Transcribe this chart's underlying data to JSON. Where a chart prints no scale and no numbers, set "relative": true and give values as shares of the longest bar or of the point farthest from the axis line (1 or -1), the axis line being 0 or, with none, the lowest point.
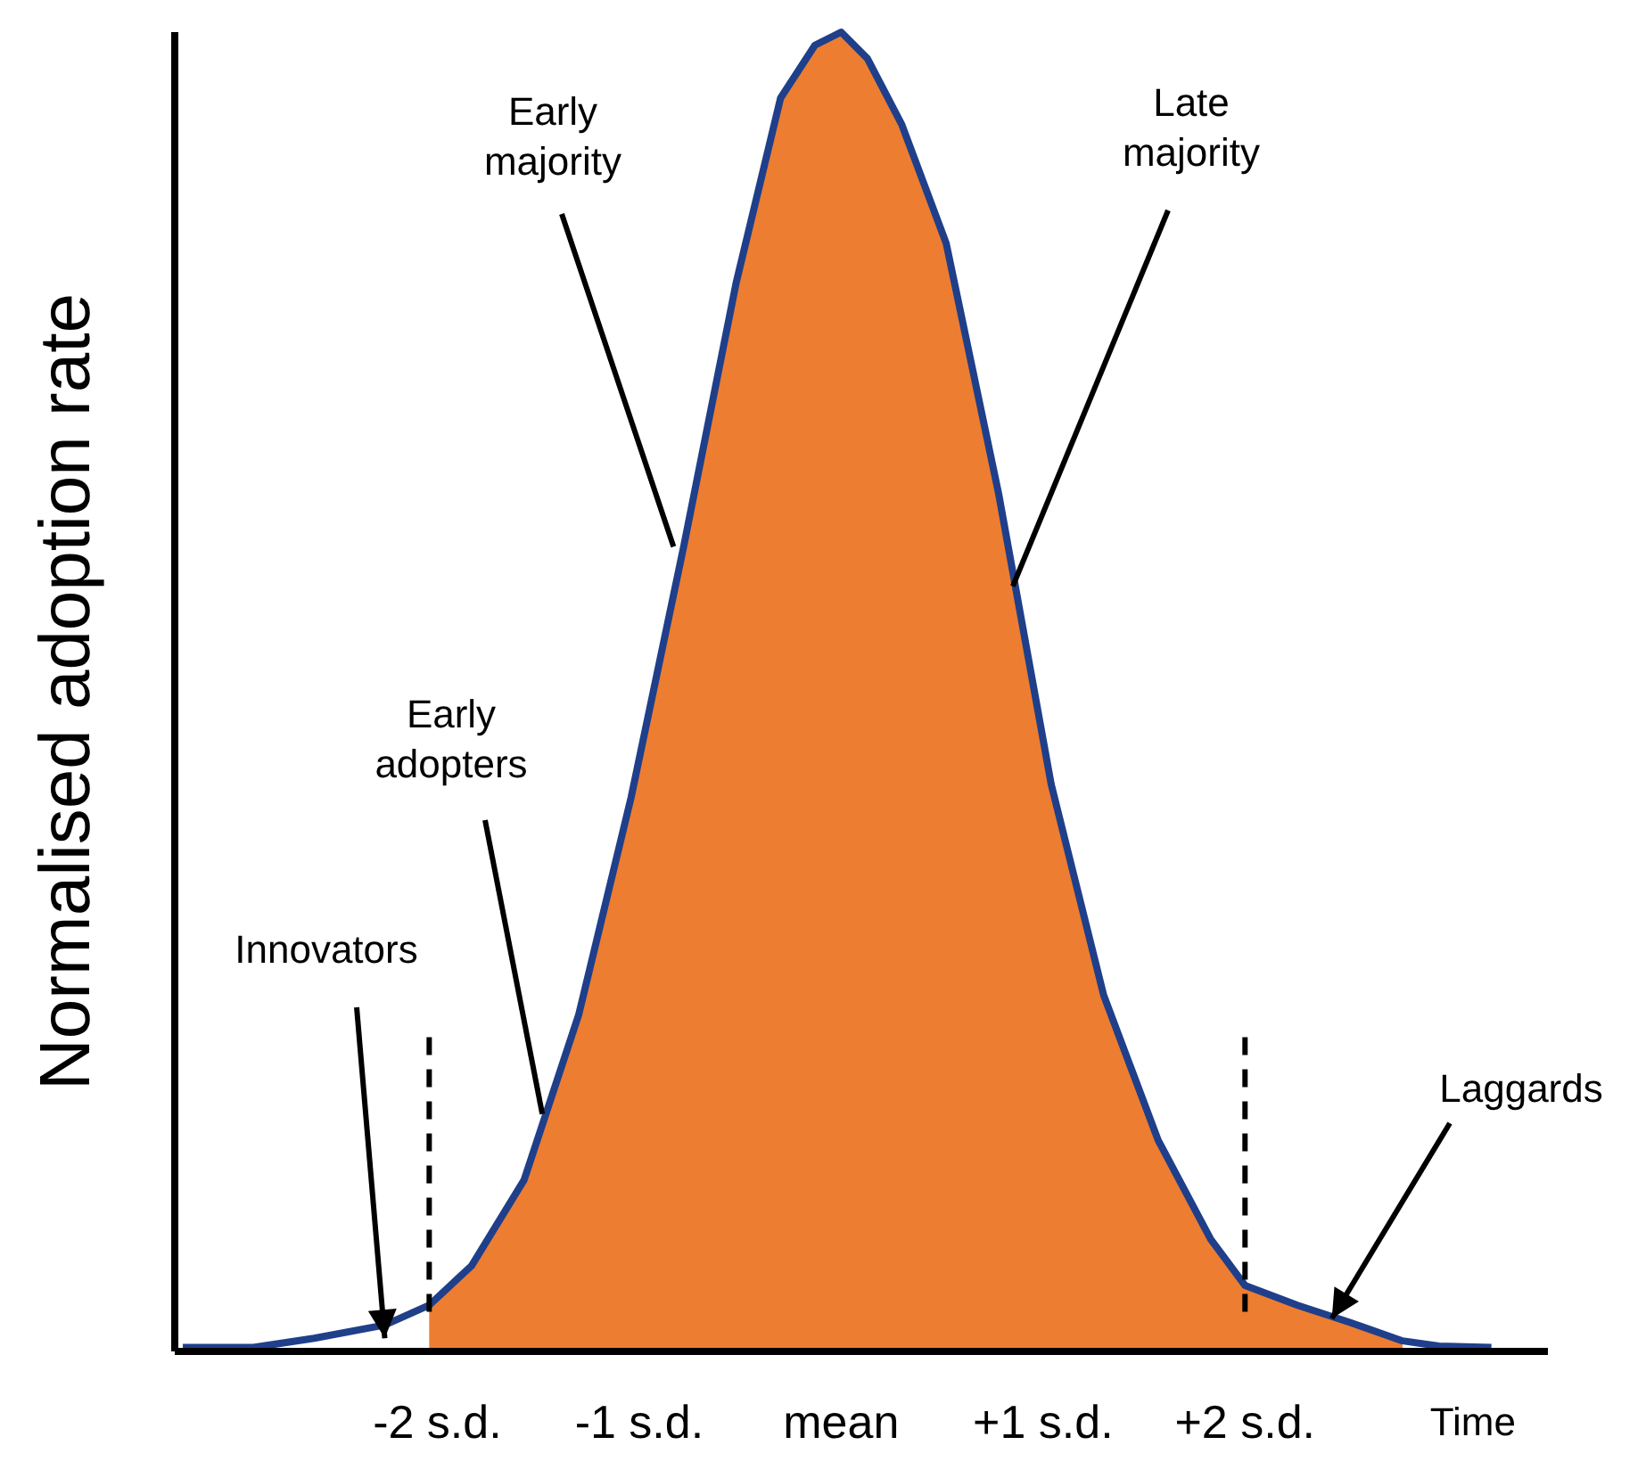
{
  "chart_data": {
    "type": "line",
    "relative": true,
    "ylabel": "Normalised adoption rate",
    "xlabel": "Time",
    "x": [
      -3.26,
      -2.91,
      -2.61,
      -2.26,
      -2.04,
      -1.83,
      -1.57,
      -1.3,
      -1.04,
      -0.78,
      -0.52,
      -0.3,
      -0.13,
      0,
      0.13,
      0.3,
      0.52,
      0.78,
      1.04,
      1.3,
      1.57,
      1.83,
      2.0,
      2.26,
      2.52,
      2.78,
      2.96,
      3.22
    ],
    "xlim": [
      -3.3,
      3.5
    ],
    "xticks": [
      {
        "value": -2,
        "label": "-2 s.d."
      },
      {
        "value": -1,
        "label": "-1 s.d."
      },
      {
        "value": 0,
        "label": "mean"
      },
      {
        "value": 1,
        "label": "+1 s.d."
      },
      {
        "value": 2,
        "label": "+2 s.d."
      }
    ],
    "series": [
      {
        "type": "area",
        "color": "#ed7d31",
        "values": [
          null,
          null,
          null,
          null,
          0.035,
          0.065,
          0.13,
          0.255,
          0.42,
          0.61,
          0.81,
          0.95,
          0.99,
          1,
          0.98,
          0.93,
          0.84,
          0.65,
          0.43,
          0.27,
          0.16,
          0.085,
          0.05,
          0.035,
          0.022,
          0.008,
          null,
          null
        ]
      },
      {
        "color": "#1f3f8a",
        "values": [
          0.003,
          0.003,
          0.01,
          0.02,
          0.035,
          0.065,
          0.13,
          0.255,
          0.42,
          0.61,
          0.81,
          0.95,
          0.99,
          1,
          0.98,
          0.93,
          0.84,
          0.65,
          0.43,
          0.27,
          0.16,
          0.085,
          0.05,
          0.035,
          0.022,
          0.008,
          0.004,
          0.003
        ]
      }
    ],
    "ref_lines": [
      {
        "axis": "x",
        "value": -2.04,
        "color": "#000000",
        "line_style": "dashed"
      },
      {
        "axis": "x",
        "value": 2.0,
        "color": "#000000",
        "line_style": "dashed"
      }
    ],
    "annotations": [
      {
        "text": "Innovators",
        "x": -2.26,
        "y": 0.01
      },
      {
        "text": "Early adopters",
        "x": -1.48,
        "y": 0.18
      },
      {
        "text": "Early majority",
        "x": -0.83,
        "y": 0.61
      },
      {
        "text": "Late majority",
        "x": 0.85,
        "y": 0.58
      },
      {
        "text": "Laggards",
        "x": 2.43,
        "y": 0.025
      }
    ],
    "grid": false,
    "marker": "none",
    "line_style": "solid"
  }
}
